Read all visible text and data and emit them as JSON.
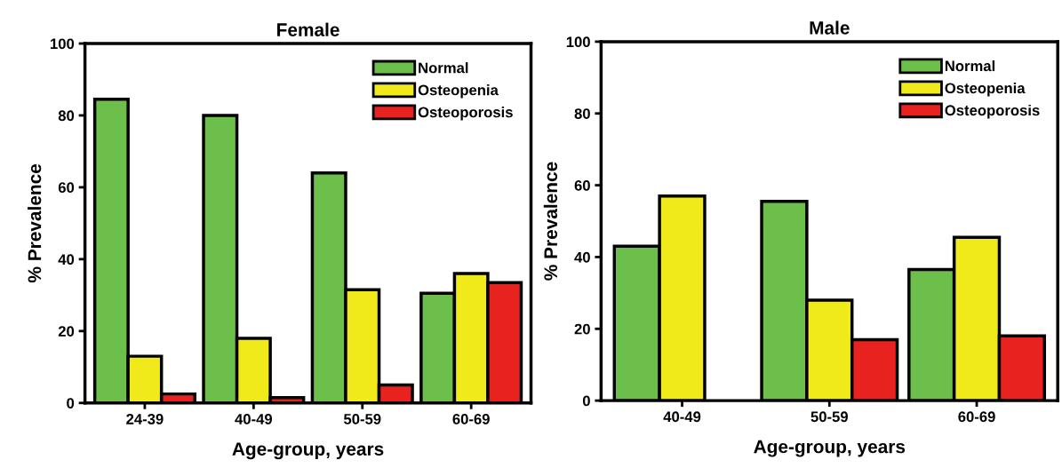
{
  "chart_data": [
    {
      "type": "bar",
      "title": "Female",
      "xlabel": "Age-group, years",
      "ylabel": "% Prevalence",
      "categories": [
        "24-39",
        "40-49",
        "50-59",
        "60-69"
      ],
      "ylim": [
        0,
        100
      ],
      "yticks": [
        0,
        20,
        40,
        60,
        80,
        100
      ],
      "legend": "top right",
      "series": [
        {
          "name": "Normal",
          "color": "#6cbf4a",
          "values": [
            84.5,
            80,
            64,
            30.5
          ]
        },
        {
          "name": "Osteopenia",
          "color": "#f0ea1a",
          "values": [
            13,
            18,
            31.5,
            36
          ]
        },
        {
          "name": "Osteoporosis",
          "color": "#e8221f",
          "values": [
            2.5,
            1.5,
            5,
            33.5
          ]
        }
      ]
    },
    {
      "type": "bar",
      "title": "Male",
      "xlabel": "Age-group, years",
      "ylabel": "% Prevalence",
      "categories": [
        "40-49",
        "50-59",
        "60-69"
      ],
      "ylim": [
        0,
        100
      ],
      "yticks": [
        0,
        20,
        40,
        60,
        80,
        100
      ],
      "legend": "top right",
      "series": [
        {
          "name": "Normal",
          "color": "#6cbf4a",
          "values": [
            43,
            55.5,
            36.5
          ]
        },
        {
          "name": "Osteopenia",
          "color": "#f0ea1a",
          "values": [
            57,
            28,
            45.5
          ]
        },
        {
          "name": "Osteoporosis",
          "color": "#e8221f",
          "values": [
            null,
            17,
            18
          ]
        }
      ]
    }
  ]
}
